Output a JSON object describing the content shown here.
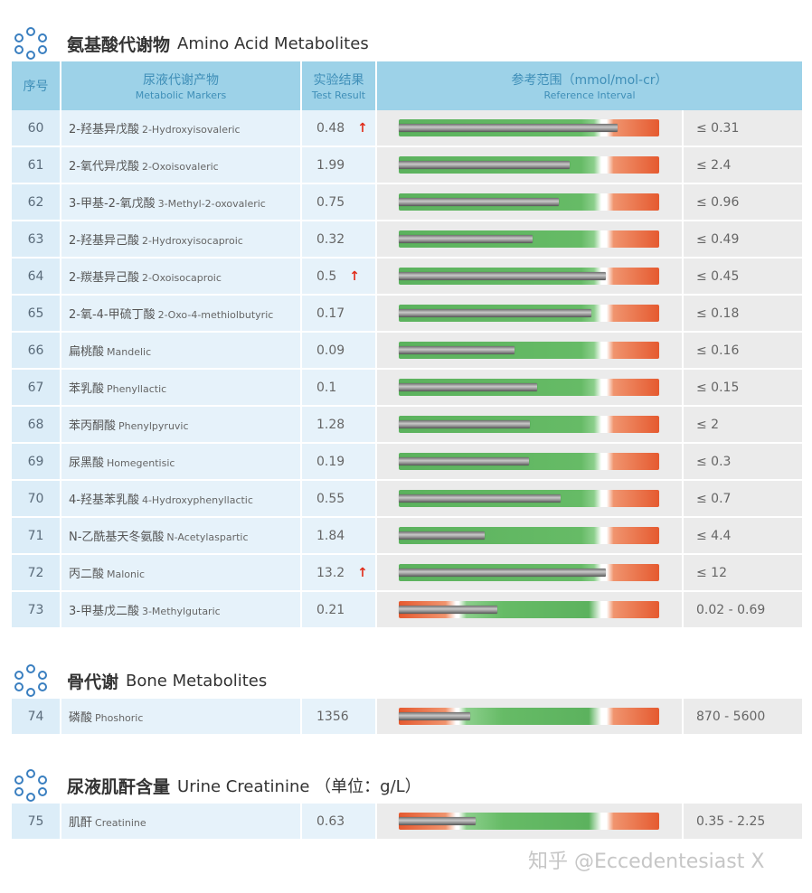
{
  "sections": [
    {
      "title_zh": "氨基酸代谢物",
      "title_en": "Amino Acid Metabolites",
      "header": {
        "no": "序号",
        "marker_zh": "尿液代谢产物",
        "marker_en": "Metabolic Markers",
        "result_zh": "实验结果",
        "result_en": "Test Result",
        "ref_zh": "参考范围（mmol/mol-cr）",
        "ref_en": "Reference Interval"
      },
      "rows": [
        {
          "no": "60",
          "zh": "2-羟基异戊酸",
          "en": "2-Hydroxyisovaleric",
          "result": "0.48",
          "flag": "↑",
          "ref": "≤ 0.31",
          "bar": "std",
          "level": 0.84
        },
        {
          "no": "61",
          "zh": "2-氧代异戊酸",
          "en": "2-Oxoisovaleric",
          "result": "1.99",
          "flag": "",
          "ref": "≤ 2.4",
          "bar": "std",
          "level": 0.655
        },
        {
          "no": "62",
          "zh": "3-甲基-2-氧戊酸",
          "en": "3-Methyl-2-oxovaleric",
          "result": "0.75",
          "flag": "",
          "ref": "≤ 0.96",
          "bar": "std",
          "level": 0.615
        },
        {
          "no": "63",
          "zh": "2-羟基异己酸",
          "en": "2-Hydroxyisocaproic",
          "result": "0.32",
          "flag": "",
          "ref": "≤ 0.49",
          "bar": "std",
          "level": 0.515
        },
        {
          "no": "64",
          "zh": "2-羰基异己酸",
          "en": "2-Oxoisocaproic",
          "result": "0.5",
          "flag": "↑",
          "ref": "≤ 0.45",
          "bar": "std",
          "level": 0.795
        },
        {
          "no": "65",
          "zh": "2-氧-4-甲硫丁酸",
          "en": "2-Oxo-4-methiolbutyric",
          "result": "0.17",
          "flag": "",
          "ref": "≤ 0.18",
          "bar": "std",
          "level": 0.74
        },
        {
          "no": "66",
          "zh": "扁桃酸",
          "en": "Mandelic",
          "result": "0.09",
          "flag": "",
          "ref": "≤ 0.16",
          "bar": "std",
          "level": 0.445
        },
        {
          "no": "67",
          "zh": "苯乳酸",
          "en": "Phenyllactic",
          "result": "0.1",
          "flag": "",
          "ref": "≤ 0.15",
          "bar": "std",
          "level": 0.53
        },
        {
          "no": "68",
          "zh": "苯丙酮酸",
          "en": "Phenylpyruvic",
          "result": "1.28",
          "flag": "",
          "ref": "≤ 2",
          "bar": "std",
          "level": 0.505
        },
        {
          "no": "69",
          "zh": "尿黑酸",
          "en": "Homegentisic",
          "result": "0.19",
          "flag": "",
          "ref": "≤ 0.3",
          "bar": "std",
          "level": 0.5
        },
        {
          "no": "70",
          "zh": "4-羟基苯乳酸",
          "en": "4-Hydroxyphenyllactic",
          "result": "0.55",
          "flag": "",
          "ref": "≤ 0.7",
          "bar": "std",
          "level": 0.62
        },
        {
          "no": "71",
          "zh": "N-乙酰基天冬氨酸",
          "en": "N-Acetylaspartic",
          "result": "1.84",
          "flag": "",
          "ref": "≤ 4.4",
          "bar": "std",
          "level": 0.33
        },
        {
          "no": "72",
          "zh": "丙二酸",
          "en": "Malonic",
          "result": "13.2",
          "flag": "↑",
          "ref": "≤ 12",
          "bar": "std",
          "level": 0.795
        },
        {
          "no": "73",
          "zh": "3-甲基戊二酸",
          "en": "3-Methylgutaric",
          "result": "0.21",
          "flag": "",
          "ref": "0.02 - 0.69",
          "bar": "low",
          "level": 0.38
        }
      ]
    },
    {
      "title_zh": "骨代谢",
      "title_en": "Bone Metabolites",
      "rows": [
        {
          "no": "74",
          "zh": "磷酸",
          "en": "Phoshoric",
          "result": "1356",
          "flag": "",
          "ref": "870 - 5600",
          "bar": "low",
          "level": 0.275
        }
      ]
    },
    {
      "title_zh": "尿液肌酐含量",
      "title_en": "Urine Creatinine （单位：g/L）",
      "rows": [
        {
          "no": "75",
          "zh": "肌酐",
          "en": "Creatinine",
          "result": "0.63",
          "flag": "",
          "ref": "0.35 - 2.25",
          "bar": "low",
          "level": 0.295
        }
      ]
    }
  ],
  "watermark": "知乎 @Eccedentesiast X",
  "colors": {
    "header_bg": "#9dd2e8",
    "header_text": "#3f8fb8",
    "arrow": "#e02d1b",
    "green": "#5cb25e",
    "red": "#e55a30"
  }
}
